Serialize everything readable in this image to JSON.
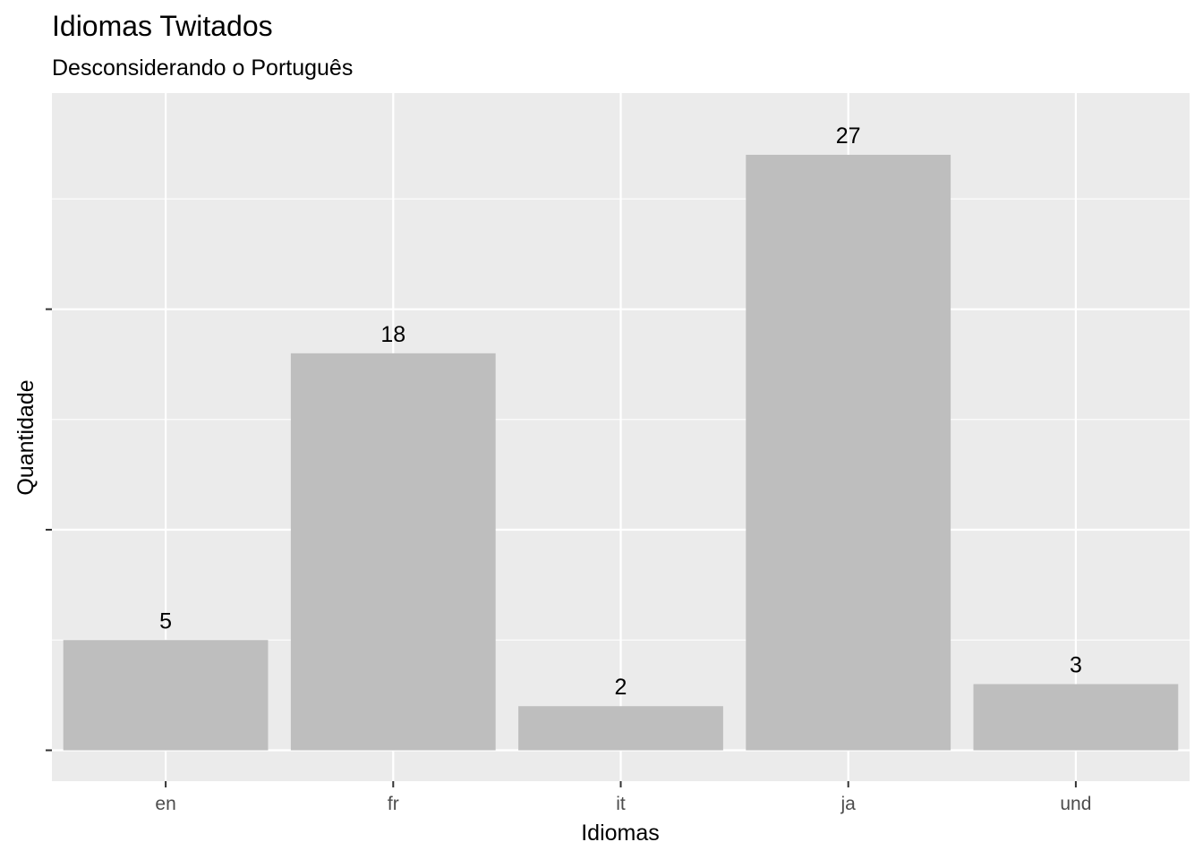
{
  "chart_data": {
    "type": "bar",
    "title": "Idiomas Twitados",
    "subtitle": "Desconsiderando o Português",
    "xlabel": "Idiomas",
    "ylabel": "Quantidade",
    "categories": [
      "en",
      "fr",
      "it",
      "ja",
      "und"
    ],
    "values": [
      5,
      18,
      2,
      27,
      3
    ],
    "ylim": [
      -1.4,
      29.8
    ],
    "y_major_ticks": [
      0,
      10,
      20
    ],
    "y_minor_ticks": [
      5,
      15,
      25
    ],
    "y_tick_labels_shown": false,
    "grid": true,
    "legend": "none",
    "colors": {
      "bar": "#bebebe",
      "panel": "#ebebeb",
      "grid": "#ffffff",
      "text": "#000000",
      "tick_text": "#4d4d4d",
      "tick_mark": "#333333"
    }
  }
}
